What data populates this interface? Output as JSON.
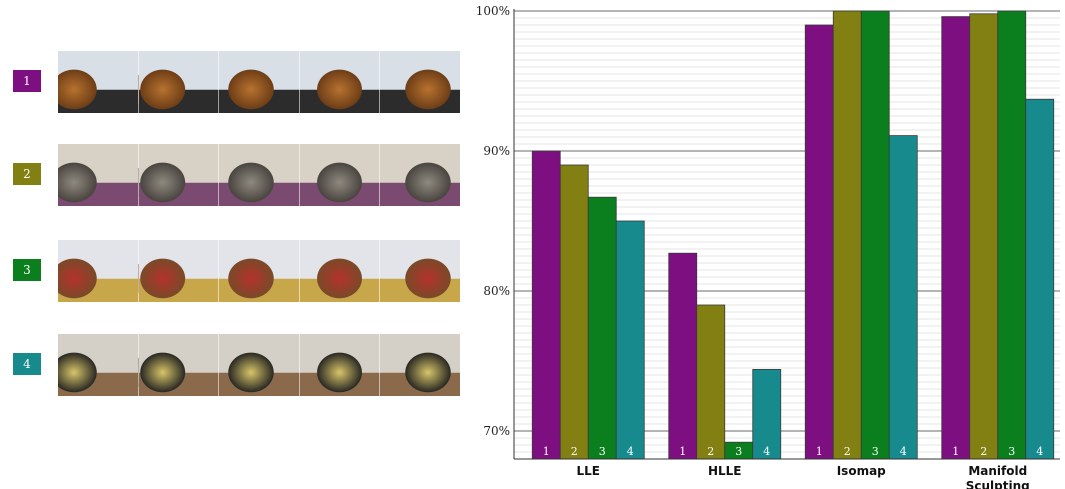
{
  "legend": {
    "items": [
      {
        "label": "1",
        "color": "#7d0f80",
        "image": "plush fox toy seen from rotating viewpoints",
        "palette": [
          "#d9dfe6",
          "#b8722f",
          "#6e3e17",
          "#2c2c2c"
        ]
      },
      {
        "label": "2",
        "color": "#828012",
        "image": "room hallway with purple chair and door",
        "palette": [
          "#d8d2c6",
          "#8f8a80",
          "#4a4540",
          "#7a4a70"
        ]
      },
      {
        "label": "3",
        "color": "#0b7f1e",
        "image": "plush toys on bed with red pillow",
        "palette": [
          "#e3e4ea",
          "#b5312c",
          "#7a4a28",
          "#c8a64a"
        ]
      },
      {
        "label": "4",
        "color": "#168a8c",
        "image": "spotted plush leopard toy",
        "palette": [
          "#d4cfc7",
          "#d8c56a",
          "#2b2a24",
          "#8a6a4a"
        ]
      }
    ]
  },
  "chart_data": {
    "type": "bar",
    "categories": [
      "LLE",
      "HLLE",
      "Isomap",
      "Manifold Sculpting"
    ],
    "category_lines": [
      [
        "LLE"
      ],
      [
        "HLLE"
      ],
      [
        "Isomap"
      ],
      [
        "Manifold",
        "Sculpting"
      ]
    ],
    "series": [
      {
        "name": "1",
        "color": "#7d0f80",
        "values": [
          90.0,
          82.7,
          99.0,
          99.6
        ]
      },
      {
        "name": "2",
        "color": "#828012",
        "values": [
          89.0,
          79.0,
          100.0,
          99.8
        ]
      },
      {
        "name": "3",
        "color": "#0b7f1e",
        "values": [
          86.7,
          69.2,
          100.0,
          100.0
        ]
      },
      {
        "name": "4",
        "color": "#168a8c",
        "values": [
          85.0,
          74.4,
          91.1,
          93.7
        ]
      }
    ],
    "ylim": [
      68.0,
      100.0
    ],
    "yticks": [
      70,
      80,
      90,
      100
    ],
    "ytick_labels": [
      "70%",
      "80%",
      "90%",
      "100%"
    ],
    "grid": true,
    "legend": "left, as numbered image strips",
    "title": "",
    "xlabel": "",
    "ylabel": ""
  }
}
